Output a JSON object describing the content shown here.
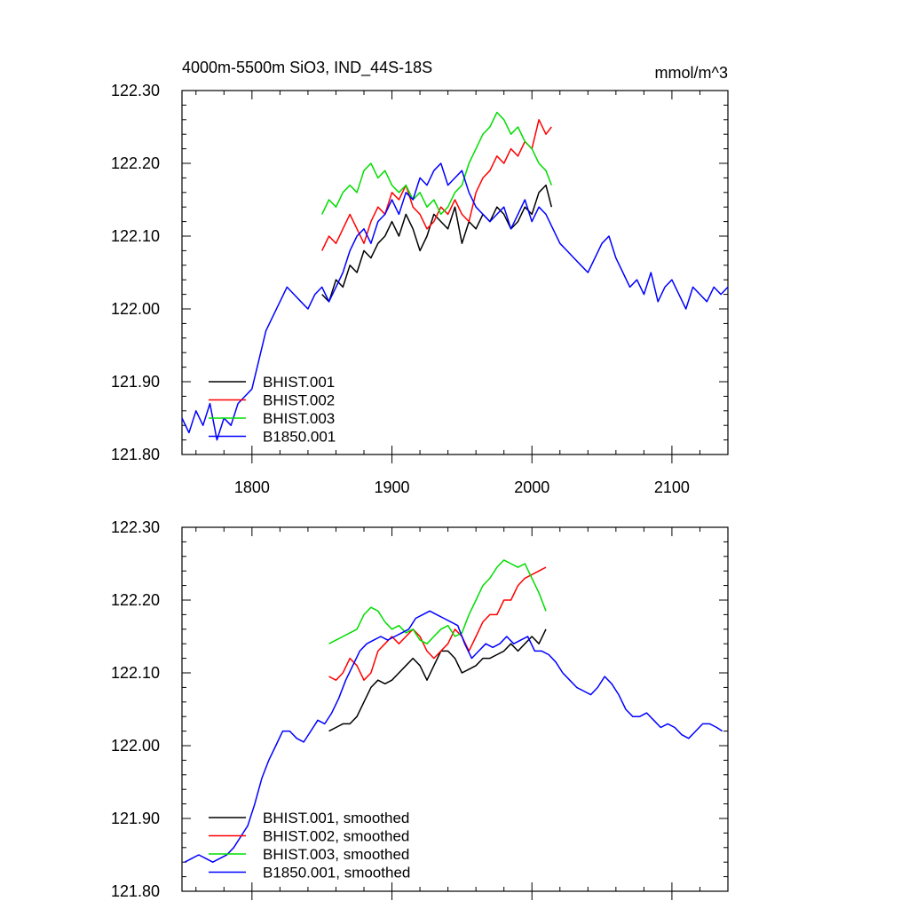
{
  "chart_data": [
    {
      "type": "line",
      "title": "4000m-5500m SiO3, IND_44S-18S",
      "units": "mmol/m^3",
      "xlim": [
        1750,
        2140
      ],
      "ylim": [
        121.8,
        122.3
      ],
      "xticks": [
        1800,
        1900,
        2000,
        2100
      ],
      "xtick_labels": [
        "1800",
        "1900",
        "2000",
        "2100"
      ],
      "yticks": [
        121.8,
        121.9,
        122.0,
        122.1,
        122.2,
        122.3
      ],
      "ytick_labels": [
        "121.80",
        "121.90",
        "122.00",
        "122.10",
        "122.20",
        "122.30"
      ],
      "legend_position": "bottom-left",
      "series": [
        {
          "name": "BHIST.001",
          "color": "#000000",
          "x": [
            1850,
            1855,
            1860,
            1865,
            1870,
            1875,
            1880,
            1885,
            1890,
            1895,
            1900,
            1905,
            1910,
            1915,
            1920,
            1925,
            1930,
            1935,
            1940,
            1945,
            1950,
            1955,
            1960,
            1965,
            1970,
            1975,
            1980,
            1985,
            1990,
            1995,
            2000,
            2005,
            2010,
            2014
          ],
          "y": [
            122.02,
            122.01,
            122.04,
            122.03,
            122.06,
            122.05,
            122.08,
            122.07,
            122.09,
            122.1,
            122.12,
            122.1,
            122.13,
            122.11,
            122.08,
            122.1,
            122.13,
            122.12,
            122.11,
            122.14,
            122.09,
            122.12,
            122.11,
            122.13,
            122.12,
            122.14,
            122.13,
            122.11,
            122.12,
            122.14,
            122.13,
            122.16,
            122.17,
            122.14
          ]
        },
        {
          "name": "BHIST.002",
          "color": "#ff0000",
          "x": [
            1850,
            1855,
            1860,
            1865,
            1870,
            1875,
            1880,
            1885,
            1890,
            1895,
            1900,
            1905,
            1910,
            1915,
            1920,
            1925,
            1930,
            1935,
            1940,
            1945,
            1950,
            1955,
            1960,
            1965,
            1970,
            1975,
            1980,
            1985,
            1990,
            1995,
            2000,
            2005,
            2010,
            2014
          ],
          "y": [
            122.08,
            122.1,
            122.09,
            122.11,
            122.13,
            122.11,
            122.09,
            122.12,
            122.14,
            122.13,
            122.16,
            122.15,
            122.17,
            122.14,
            122.13,
            122.11,
            122.12,
            122.14,
            122.13,
            122.15,
            122.13,
            122.12,
            122.16,
            122.18,
            122.19,
            122.21,
            122.2,
            122.22,
            122.21,
            122.23,
            122.22,
            122.26,
            122.24,
            122.25
          ]
        },
        {
          "name": "BHIST.003",
          "color": "#00dd00",
          "x": [
            1850,
            1855,
            1860,
            1865,
            1870,
            1875,
            1880,
            1885,
            1890,
            1895,
            1900,
            1905,
            1910,
            1915,
            1920,
            1925,
            1930,
            1935,
            1940,
            1945,
            1950,
            1955,
            1960,
            1965,
            1970,
            1975,
            1980,
            1985,
            1990,
            1995,
            2000,
            2005,
            2010,
            2014
          ],
          "y": [
            122.13,
            122.15,
            122.14,
            122.16,
            122.17,
            122.16,
            122.19,
            122.2,
            122.18,
            122.19,
            122.17,
            122.16,
            122.17,
            122.15,
            122.16,
            122.14,
            122.15,
            122.13,
            122.14,
            122.16,
            122.17,
            122.2,
            122.22,
            122.24,
            122.25,
            122.27,
            122.26,
            122.24,
            122.25,
            122.23,
            122.22,
            122.2,
            122.19,
            122.17
          ]
        },
        {
          "name": "B1850.001",
          "color": "#0000ff",
          "x": [
            1750,
            1755,
            1760,
            1765,
            1770,
            1775,
            1780,
            1785,
            1790,
            1795,
            1800,
            1805,
            1810,
            1815,
            1820,
            1825,
            1830,
            1835,
            1840,
            1845,
            1850,
            1855,
            1860,
            1865,
            1870,
            1875,
            1880,
            1885,
            1890,
            1895,
            1900,
            1905,
            1910,
            1915,
            1920,
            1925,
            1930,
            1935,
            1940,
            1945,
            1950,
            1955,
            1960,
            1965,
            1970,
            1975,
            1980,
            1985,
            1990,
            1995,
            2000,
            2005,
            2010,
            2015,
            2020,
            2025,
            2030,
            2035,
            2040,
            2045,
            2050,
            2055,
            2060,
            2065,
            2070,
            2075,
            2080,
            2085,
            2090,
            2095,
            2100,
            2105,
            2110,
            2115,
            2120,
            2125,
            2130,
            2135,
            2140
          ],
          "y": [
            121.85,
            121.83,
            121.86,
            121.84,
            121.87,
            121.82,
            121.85,
            121.84,
            121.87,
            121.88,
            121.89,
            121.93,
            121.97,
            121.99,
            122.01,
            122.03,
            122.02,
            122.01,
            122.0,
            122.02,
            122.03,
            122.01,
            122.03,
            122.05,
            122.08,
            122.1,
            122.11,
            122.09,
            122.12,
            122.13,
            122.15,
            122.13,
            122.16,
            122.15,
            122.18,
            122.17,
            122.19,
            122.2,
            122.17,
            122.18,
            122.19,
            122.16,
            122.14,
            122.13,
            122.12,
            122.13,
            122.14,
            122.11,
            122.13,
            122.15,
            122.12,
            122.14,
            122.13,
            122.11,
            122.09,
            122.08,
            122.07,
            122.06,
            122.05,
            122.07,
            122.09,
            122.1,
            122.07,
            122.05,
            122.03,
            122.04,
            122.02,
            122.05,
            122.01,
            122.03,
            122.04,
            122.02,
            122.0,
            122.03,
            122.02,
            122.01,
            122.03,
            122.02,
            122.03
          ]
        }
      ]
    },
    {
      "type": "line",
      "title": "",
      "xlim": [
        1750,
        2140
      ],
      "ylim": [
        121.8,
        122.3
      ],
      "xticks": [
        1800,
        1900,
        2000,
        2100
      ],
      "yticks": [
        121.8,
        121.9,
        122.0,
        122.1,
        122.2,
        122.3
      ],
      "ytick_labels": [
        "121.80",
        "121.90",
        "122.00",
        "122.10",
        "122.20",
        "122.30"
      ],
      "legend_position": "bottom-left",
      "series": [
        {
          "name": "BHIST.001, smoothed",
          "color": "#000000",
          "x": [
            1855,
            1860,
            1865,
            1870,
            1875,
            1880,
            1885,
            1890,
            1895,
            1900,
            1905,
            1910,
            1915,
            1920,
            1925,
            1930,
            1935,
            1940,
            1945,
            1950,
            1955,
            1960,
            1965,
            1970,
            1975,
            1980,
            1985,
            1990,
            1995,
            2000,
            2005,
            2010
          ],
          "y": [
            122.02,
            122.025,
            122.03,
            122.03,
            122.04,
            122.06,
            122.08,
            122.09,
            122.085,
            122.09,
            122.1,
            122.11,
            122.12,
            122.11,
            122.09,
            122.11,
            122.13,
            122.13,
            122.12,
            122.1,
            122.105,
            122.11,
            122.12,
            122.12,
            122.125,
            122.13,
            122.14,
            122.13,
            122.14,
            122.15,
            122.14,
            122.16
          ]
        },
        {
          "name": "BHIST.002, smoothed",
          "color": "#ff0000",
          "x": [
            1855,
            1860,
            1865,
            1870,
            1875,
            1880,
            1885,
            1890,
            1895,
            1900,
            1905,
            1910,
            1915,
            1920,
            1925,
            1930,
            1935,
            1940,
            1945,
            1950,
            1955,
            1960,
            1965,
            1970,
            1975,
            1980,
            1985,
            1990,
            1995,
            2000,
            2005,
            2010
          ],
          "y": [
            122.095,
            122.09,
            122.1,
            122.12,
            122.11,
            122.09,
            122.1,
            122.13,
            122.14,
            122.15,
            122.14,
            122.15,
            122.16,
            122.15,
            122.13,
            122.12,
            122.13,
            122.14,
            122.16,
            122.15,
            122.13,
            122.15,
            122.17,
            122.18,
            122.18,
            122.2,
            122.2,
            122.22,
            122.23,
            122.235,
            122.24,
            122.245
          ]
        },
        {
          "name": "BHIST.003, smoothed",
          "color": "#00dd00",
          "x": [
            1855,
            1860,
            1865,
            1870,
            1875,
            1880,
            1885,
            1890,
            1895,
            1900,
            1905,
            1910,
            1915,
            1920,
            1925,
            1930,
            1935,
            1940,
            1945,
            1950,
            1955,
            1960,
            1965,
            1970,
            1975,
            1980,
            1985,
            1990,
            1995,
            2000,
            2005,
            2010
          ],
          "y": [
            122.14,
            122.145,
            122.15,
            122.155,
            122.16,
            122.18,
            122.19,
            122.185,
            122.17,
            122.16,
            122.165,
            122.155,
            122.16,
            122.145,
            122.14,
            122.15,
            122.16,
            122.165,
            122.15,
            122.155,
            122.18,
            122.2,
            122.22,
            122.23,
            122.245,
            122.255,
            122.25,
            122.245,
            122.25,
            122.23,
            122.21,
            122.185
          ]
        },
        {
          "name": "B1850.001, smoothed",
          "color": "#0000ff",
          "x": [
            1752,
            1757,
            1762,
            1767,
            1772,
            1777,
            1782,
            1787,
            1792,
            1797,
            1802,
            1807,
            1812,
            1817,
            1822,
            1827,
            1832,
            1837,
            1842,
            1847,
            1852,
            1857,
            1862,
            1867,
            1872,
            1877,
            1882,
            1887,
            1892,
            1897,
            1902,
            1907,
            1912,
            1917,
            1922,
            1927,
            1932,
            1937,
            1942,
            1947,
            1952,
            1957,
            1962,
            1967,
            1972,
            1977,
            1982,
            1987,
            1992,
            1997,
            2002,
            2007,
            2012,
            2017,
            2022,
            2027,
            2032,
            2037,
            2042,
            2047,
            2052,
            2057,
            2062,
            2067,
            2072,
            2077,
            2082,
            2087,
            2092,
            2097,
            2102,
            2107,
            2112,
            2117,
            2122,
            2127,
            2132,
            2136
          ],
          "y": [
            121.84,
            121.845,
            121.85,
            121.845,
            121.84,
            121.845,
            121.85,
            121.86,
            121.875,
            121.89,
            121.92,
            121.955,
            121.98,
            122.0,
            122.02,
            122.02,
            122.01,
            122.005,
            122.02,
            122.035,
            122.03,
            122.045,
            122.065,
            122.09,
            122.11,
            122.13,
            122.14,
            122.145,
            122.15,
            122.145,
            122.15,
            122.155,
            122.16,
            122.175,
            122.18,
            122.185,
            122.18,
            122.175,
            122.17,
            122.165,
            122.14,
            122.12,
            122.13,
            122.14,
            122.135,
            122.14,
            122.15,
            122.14,
            122.145,
            122.15,
            122.13,
            122.13,
            122.125,
            122.115,
            122.1,
            122.09,
            122.08,
            122.075,
            122.07,
            122.08,
            122.095,
            122.085,
            122.07,
            122.05,
            122.04,
            122.04,
            122.045,
            122.035,
            122.025,
            122.03,
            122.025,
            122.015,
            122.01,
            122.02,
            122.03,
            122.03,
            122.025,
            122.02
          ]
        }
      ]
    }
  ]
}
